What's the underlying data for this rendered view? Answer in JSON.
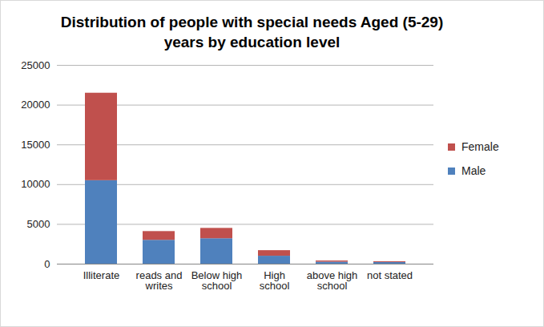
{
  "chart_data": {
    "type": "bar",
    "title": "Distribution of people with special needs Aged (5-29) years by education level",
    "categories": [
      "Illiterate",
      "reads and writes",
      "Below high school",
      "High school",
      "above high school",
      "not stated"
    ],
    "series": [
      {
        "name": "Male",
        "color": "#4f81bd",
        "values": [
          10500,
          3000,
          3200,
          1000,
          250,
          200
        ]
      },
      {
        "name": "Female",
        "color": "#c0504d",
        "values": [
          11000,
          1100,
          1300,
          700,
          150,
          100
        ]
      }
    ],
    "stacked": true,
    "ylim": [
      0,
      25000
    ],
    "yticks": [
      0,
      5000,
      10000,
      15000,
      20000,
      25000
    ],
    "grid": true,
    "legend": "right"
  }
}
